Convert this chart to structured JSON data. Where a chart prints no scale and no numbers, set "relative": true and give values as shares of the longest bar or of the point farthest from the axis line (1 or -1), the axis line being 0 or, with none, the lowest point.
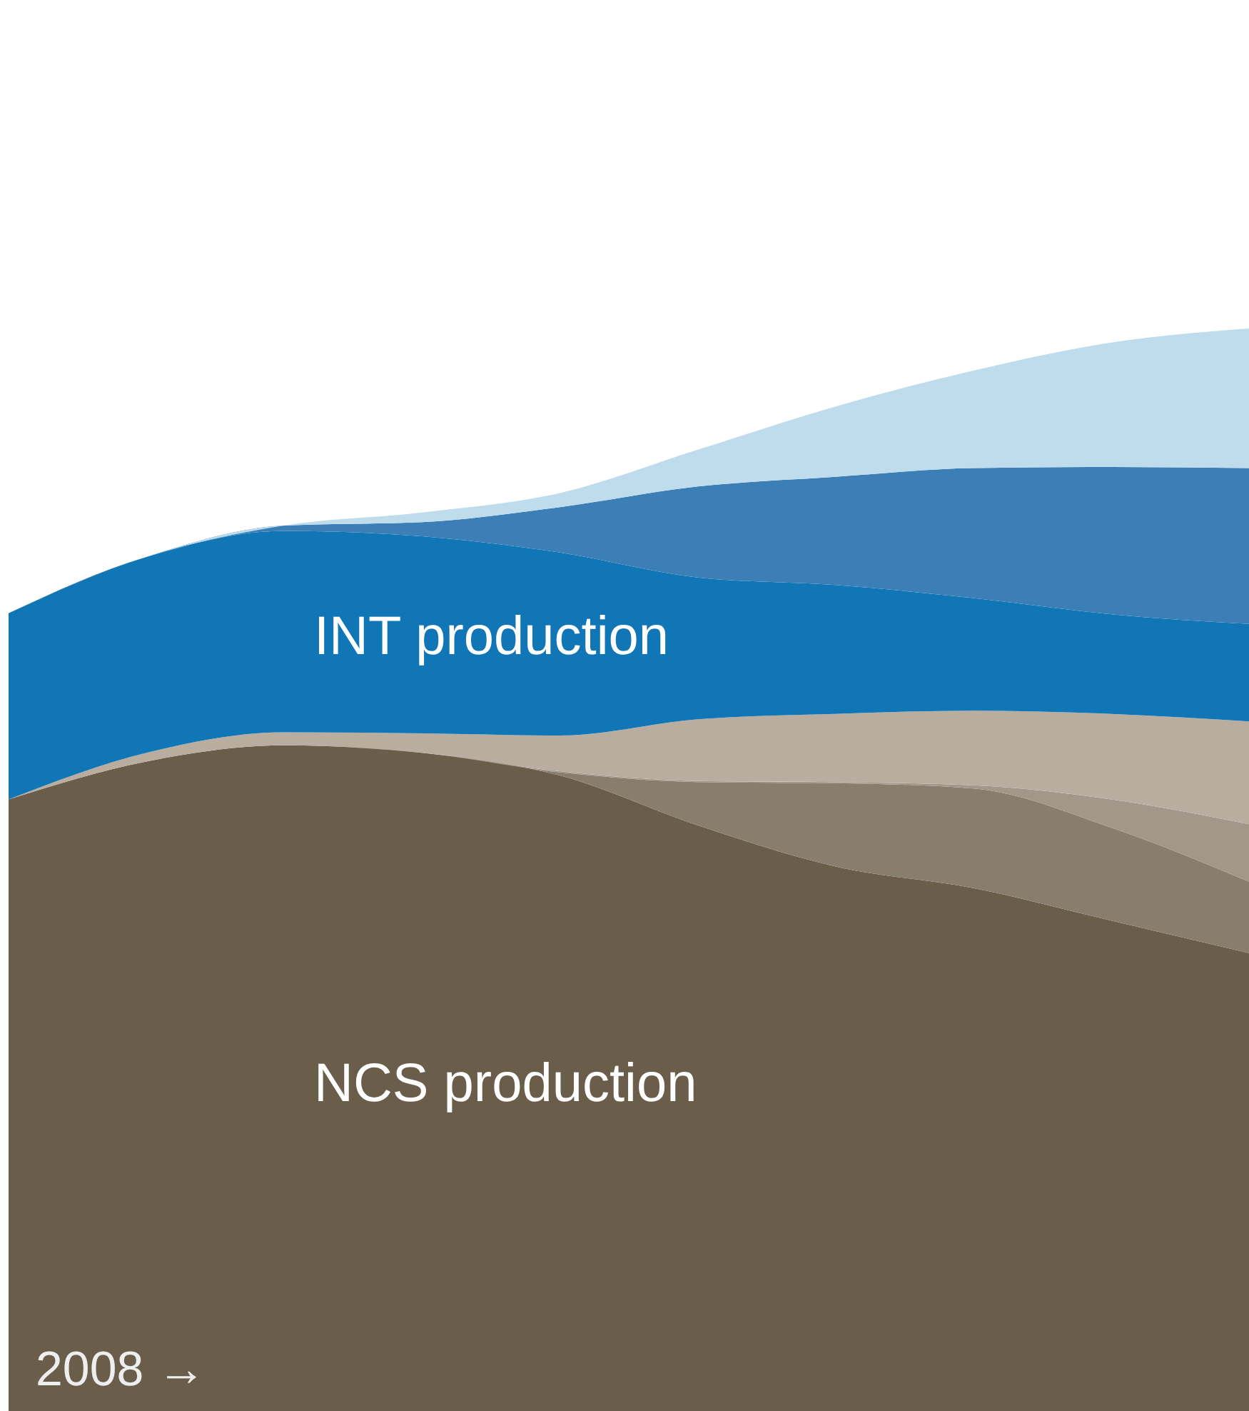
{
  "chart_data": {
    "type": "area",
    "stacked": true,
    "relative": true,
    "categories": [
      null,
      null,
      null,
      null,
      null,
      null,
      null,
      null,
      null,
      null
    ],
    "series": [
      {
        "name": "NCS production",
        "color": "#6a5e4b",
        "values": [
          0.565,
          0.6,
          0.615,
          0.608,
          0.587,
          0.541,
          0.503,
          0.483,
          0.453,
          0.423
        ]
      },
      {
        "color": "#887e6e",
        "values": [
          0,
          0,
          0,
          0,
          0.003,
          0.04,
          0.077,
          0.092,
          0.086,
          0.066
        ]
      },
      {
        "color": "#a2988a",
        "values": [
          0,
          0,
          0,
          0,
          0.001,
          0.001,
          0.001,
          0.003,
          0.026,
          0.053
        ]
      },
      {
        "color": "#b8ad9f",
        "values": [
          0,
          0.008,
          0.012,
          0.018,
          0.033,
          0.057,
          0.063,
          0.069,
          0.079,
          0.095
        ]
      },
      {
        "name": "INT production",
        "color": "#1176b5",
        "values": [
          0.172,
          0.181,
          0.186,
          0.182,
          0.169,
          0.131,
          0.119,
          0.104,
          0.092,
          0.09
        ]
      },
      {
        "color": "#3b7fb6",
        "values": [
          0,
          0,
          0.005,
          0.013,
          0.042,
          0.084,
          0.1,
          0.12,
          0.136,
          0.144
        ]
      },
      {
        "color": "#bedcec",
        "values": [
          0,
          0,
          0,
          0.009,
          0.013,
          0.034,
          0.065,
          0.09,
          0.115,
          0.129
        ]
      }
    ],
    "annotations": [
      "2008 →"
    ]
  }
}
